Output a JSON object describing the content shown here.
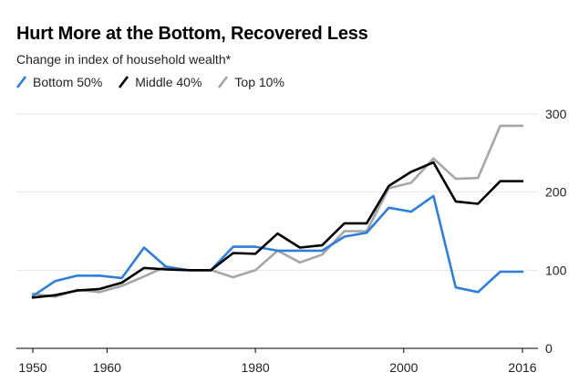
{
  "chart_data": {
    "type": "line",
    "title": "Hurt More at the Bottom, Recovered Less",
    "subtitle": "Change in index of household wealth*",
    "x": [
      1950,
      1953,
      1956,
      1959,
      1962,
      1965,
      1968,
      1971,
      1974,
      1977,
      1980,
      1983,
      1986,
      1989,
      1992,
      1995,
      1998,
      2001,
      2004,
      2007,
      2010,
      2013,
      2016
    ],
    "series": [
      {
        "name": "Bottom 50%",
        "color": "#2f7ed8",
        "values": [
          67,
          86,
          93,
          93,
          90,
          129,
          104,
          100,
          100,
          130,
          130,
          125,
          125,
          125,
          143,
          148,
          180,
          175,
          195,
          78,
          72,
          98,
          98
        ]
      },
      {
        "name": "Middle 40%",
        "color": "#000000",
        "values": [
          65,
          68,
          74,
          76,
          84,
          103,
          101,
          100,
          100,
          122,
          121,
          147,
          129,
          132,
          160,
          160,
          208,
          226,
          238,
          188,
          185,
          214,
          214
        ]
      },
      {
        "name": "Top 10%",
        "color": "#a6a6a6",
        "values": [
          70,
          66,
          75,
          72,
          80,
          92,
          105,
          100,
          100,
          91,
          100,
          125,
          110,
          120,
          150,
          150,
          205,
          212,
          243,
          217,
          218,
          285,
          285
        ]
      }
    ],
    "xticks": [
      "1950",
      "1960",
      "1980",
      "2000",
      "2016"
    ],
    "yticks": [
      "0",
      "100",
      "200",
      "300"
    ],
    "ylim": [
      0,
      300
    ],
    "xlim": [
      1950,
      2016
    ],
    "grid": true,
    "legend_position": "top-left"
  }
}
